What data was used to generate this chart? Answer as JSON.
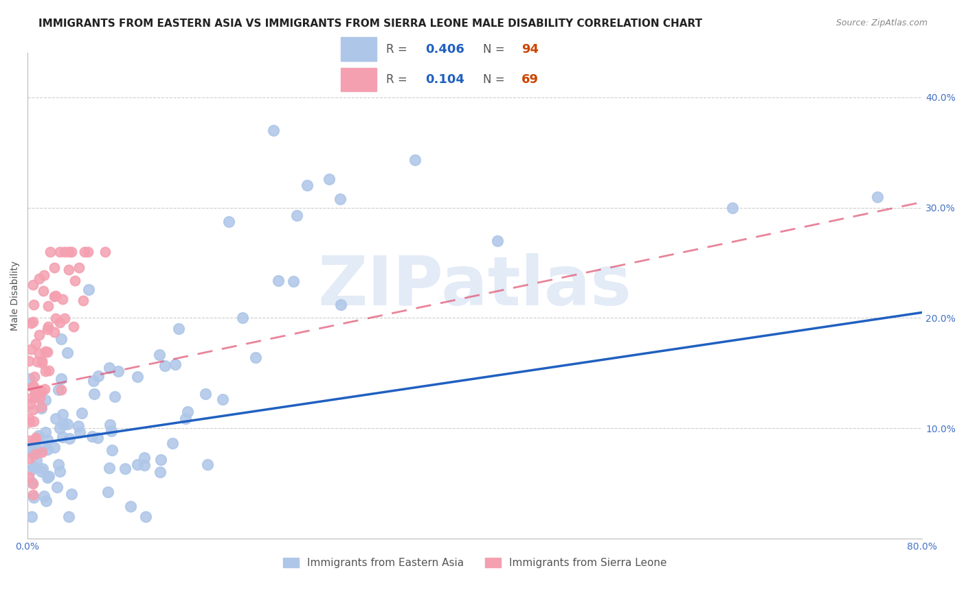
{
  "title": "IMMIGRANTS FROM EASTERN ASIA VS IMMIGRANTS FROM SIERRA LEONE MALE DISABILITY CORRELATION CHART",
  "source": "Source: ZipAtlas.com",
  "xlabel": "",
  "ylabel": "Male Disability",
  "xlim": [
    0.0,
    0.8
  ],
  "ylim": [
    0.0,
    0.44
  ],
  "yticks": [
    0.0,
    0.1,
    0.2,
    0.3,
    0.4
  ],
  "ytick_labels": [
    "",
    "10.0%",
    "20.0%",
    "30.0%",
    "40.0%"
  ],
  "xticks": [
    0.0,
    0.1,
    0.2,
    0.3,
    0.4,
    0.5,
    0.6,
    0.7,
    0.8
  ],
  "xtick_labels": [
    "0.0%",
    "",
    "",
    "",
    "",
    "",
    "",
    "",
    "80.0%"
  ],
  "series1_name": "Immigrants from Eastern Asia",
  "series1_color": "#aec6e8",
  "series1_line_color": "#2060c0",
  "series1_R": 0.406,
  "series1_N": 94,
  "series2_name": "Immigrants from Sierra Leone",
  "series2_color": "#f4a0b0",
  "series2_line_color": "#e05070",
  "series2_R": 0.104,
  "series2_N": 69,
  "background_color": "#ffffff",
  "grid_color": "#cccccc",
  "tick_color": "#4472c4",
  "watermark": "ZIPatlas",
  "watermark_color": "#c8d8f0",
  "title_fontsize": 11,
  "source_fontsize": 9,
  "axis_label_fontsize": 10,
  "tick_fontsize": 10,
  "legend_fontsize": 11
}
